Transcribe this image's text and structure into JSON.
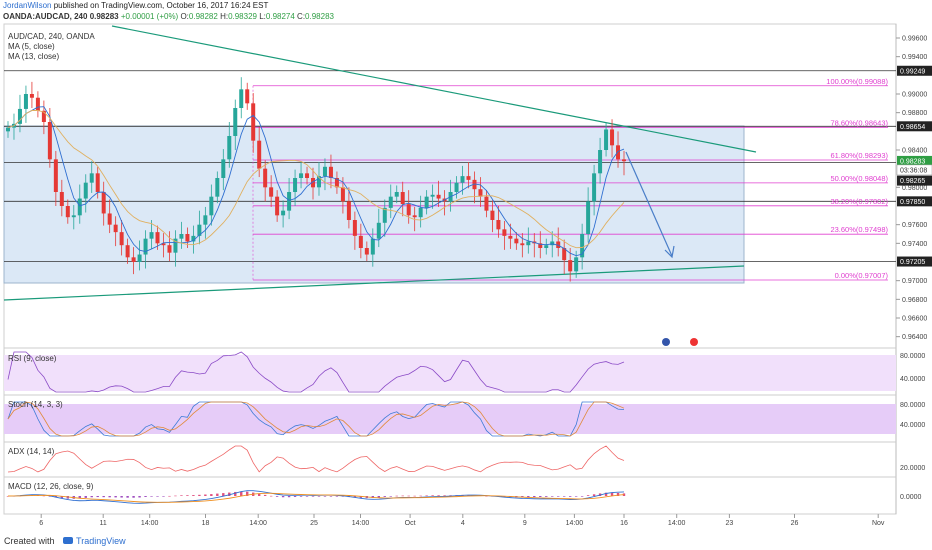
{
  "header": {
    "author": "JordanWilson",
    "published_text": " published on TradingView.com, October 16, 2017 16:24 EST"
  },
  "ohlc_bar": {
    "symbol": "OANDA:AUDCAD, 240",
    "last": "0.98283",
    "change": "+0.00001 (+0%)",
    "o_label": "O:",
    "o": "0.98282",
    "h_label": "H:",
    "h": "0.98329",
    "l_label": "L:",
    "l": "0.98274",
    "c_label": "C:",
    "c": "0.98283"
  },
  "legend": {
    "symbol": "AUD/CAD, 240, OANDA",
    "ma1": "MA (5, close)",
    "ma2": "MA (13, close)",
    "rsi": "RSI (9, close)",
    "stoch": "Stoch (14, 3, 3)",
    "adx": "ADX (14, 14)",
    "macd": "MACD (12, 26, close, 9)"
  },
  "footer": {
    "created_with": "Created with",
    "brand": "TradingView"
  },
  "colors": {
    "up": "#26a69a",
    "down": "#e53935",
    "ma5": "#2f6fd1",
    "ma13": "#e0b060",
    "fib": "#e040d0",
    "trend": "#1a9a7a",
    "box": "#dbe8f6",
    "pane": "#f1e0fb"
  },
  "chart_data": {
    "type": "candlestick",
    "symbol": "AUD/CAD",
    "timeframe": "240",
    "y_ticks": [
      "0.99600",
      "0.99400",
      "0.99000",
      "0.98800",
      "0.98400",
      "0.98000",
      "0.97600",
      "0.97400",
      "0.97000",
      "0.96800",
      "0.96600",
      "0.96400"
    ],
    "ylim": [
      0.963,
      0.9975
    ],
    "x_ticks": [
      {
        "label": "6",
        "pos": 0.06
      },
      {
        "label": "11",
        "pos": 0.16
      },
      {
        "label": "14:00",
        "pos": 0.235
      },
      {
        "label": "18",
        "pos": 0.325
      },
      {
        "label": "14:00",
        "pos": 0.41
      },
      {
        "label": "25",
        "pos": 0.5
      },
      {
        "label": "14:00",
        "pos": 0.575
      },
      {
        "label": "Oct",
        "pos": 0.655
      },
      {
        "label": "4",
        "pos": 0.74
      },
      {
        "label": "9",
        "pos": 0.84
      },
      {
        "label": "14:00",
        "pos": 0.92
      },
      {
        "label": "16",
        "pos": 1.0
      },
      {
        "label": "14:00",
        "pos": 1.085
      },
      {
        "label": "23",
        "pos": 1.17
      },
      {
        "label": "26",
        "pos": 1.275
      },
      {
        "label": "Nov",
        "pos": 1.41
      }
    ],
    "price_badges": [
      {
        "value": "0.99249",
        "style": "dark"
      },
      {
        "value": "0.98654",
        "style": "dark"
      },
      {
        "value": "0.98283",
        "style": "green"
      },
      {
        "value": "03:36:08",
        "style": "plain"
      },
      {
        "value": "0.98265",
        "style": "dark"
      },
      {
        "value": "0.97850",
        "style": "dark"
      },
      {
        "value": "0.97205",
        "style": "dark"
      }
    ],
    "horizontal_lines": [
      0.99249,
      0.98654,
      0.98265,
      0.9785,
      0.97205
    ],
    "fib_levels": [
      {
        "label": "100.00%(0.99088)",
        "value": 0.99088
      },
      {
        "label": "78.60%(0.98643)",
        "value": 0.98643
      },
      {
        "label": "61.80%(0.98293)",
        "value": 0.98293
      },
      {
        "label": "50.00%(0.98048)",
        "value": 0.98048
      },
      {
        "label": "38.20%(0.97802)",
        "value": 0.97802
      },
      {
        "label": "23.60%(0.97498)",
        "value": 0.97498
      },
      {
        "label": "0.00%(0.97007)",
        "value": 0.97007
      }
    ],
    "closes": [
      0.9864,
      0.9868,
      0.9884,
      0.99,
      0.9896,
      0.9882,
      0.987,
      0.983,
      0.9795,
      0.978,
      0.9768,
      0.977,
      0.9788,
      0.9805,
      0.9815,
      0.9795,
      0.9772,
      0.976,
      0.9752,
      0.9738,
      0.9725,
      0.972,
      0.9728,
      0.9745,
      0.9752,
      0.974,
      0.9738,
      0.973,
      0.9745,
      0.975,
      0.9742,
      0.9748,
      0.976,
      0.977,
      0.979,
      0.981,
      0.983,
      0.9855,
      0.9885,
      0.9905,
      0.989,
      0.985,
      0.982,
      0.98,
      0.979,
      0.977,
      0.9775,
      0.9795,
      0.981,
      0.9815,
      0.981,
      0.98,
      0.9812,
      0.9822,
      0.981,
      0.98,
      0.9785,
      0.9765,
      0.9748,
      0.9735,
      0.9728,
      0.9745,
      0.9762,
      0.9778,
      0.979,
      0.9795,
      0.9782,
      0.977,
      0.9768,
      0.9778,
      0.979,
      0.9792,
      0.9788,
      0.9785,
      0.9795,
      0.9805,
      0.9812,
      0.9808,
      0.9798,
      0.979,
      0.9775,
      0.9765,
      0.9755,
      0.9748,
      0.9745,
      0.974,
      0.9738,
      0.9742,
      0.974,
      0.9735,
      0.9738,
      0.9742,
      0.9735,
      0.9722,
      0.971,
      0.9725,
      0.975,
      0.9785,
      0.9815,
      0.984,
      0.9862,
      0.9845,
      0.983,
      0.9828
    ]
  }
}
